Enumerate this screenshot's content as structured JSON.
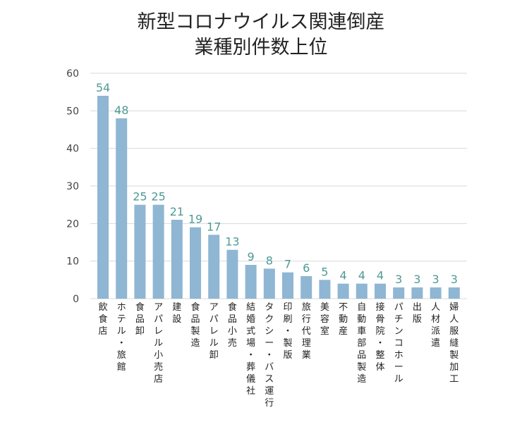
{
  "chart_data": {
    "type": "bar",
    "title": "新型コロナウイルス関連倒産",
    "subtitle": "業種別件数上位",
    "xlabel": "",
    "ylabel": "",
    "ylim": [
      0,
      60
    ],
    "yticks": [
      0,
      10,
      20,
      30,
      40,
      50,
      60
    ],
    "grid": true,
    "categories": [
      "飲食店",
      "ホテル・旅館",
      "食品卸",
      "アパレル小売店",
      "建設",
      "食品製造",
      "アパレル卸",
      "食品小売",
      "結婚式場・葬儀社",
      "タクシー・バス運行",
      "印刷・製版",
      "旅行代理業",
      "美容室",
      "不動産",
      "自動車部品製造",
      "接骨院・整体",
      "パチンコホール",
      "出版",
      "人材派遣",
      "婦人服縫製加工"
    ],
    "values": [
      54,
      48,
      25,
      25,
      21,
      19,
      17,
      13,
      9,
      8,
      7,
      6,
      5,
      4,
      4,
      4,
      3,
      3,
      3,
      3
    ],
    "bar_color": "#8fb6d3",
    "label_color": "#4f9a95",
    "grid_color": "#d9d9d9"
  }
}
